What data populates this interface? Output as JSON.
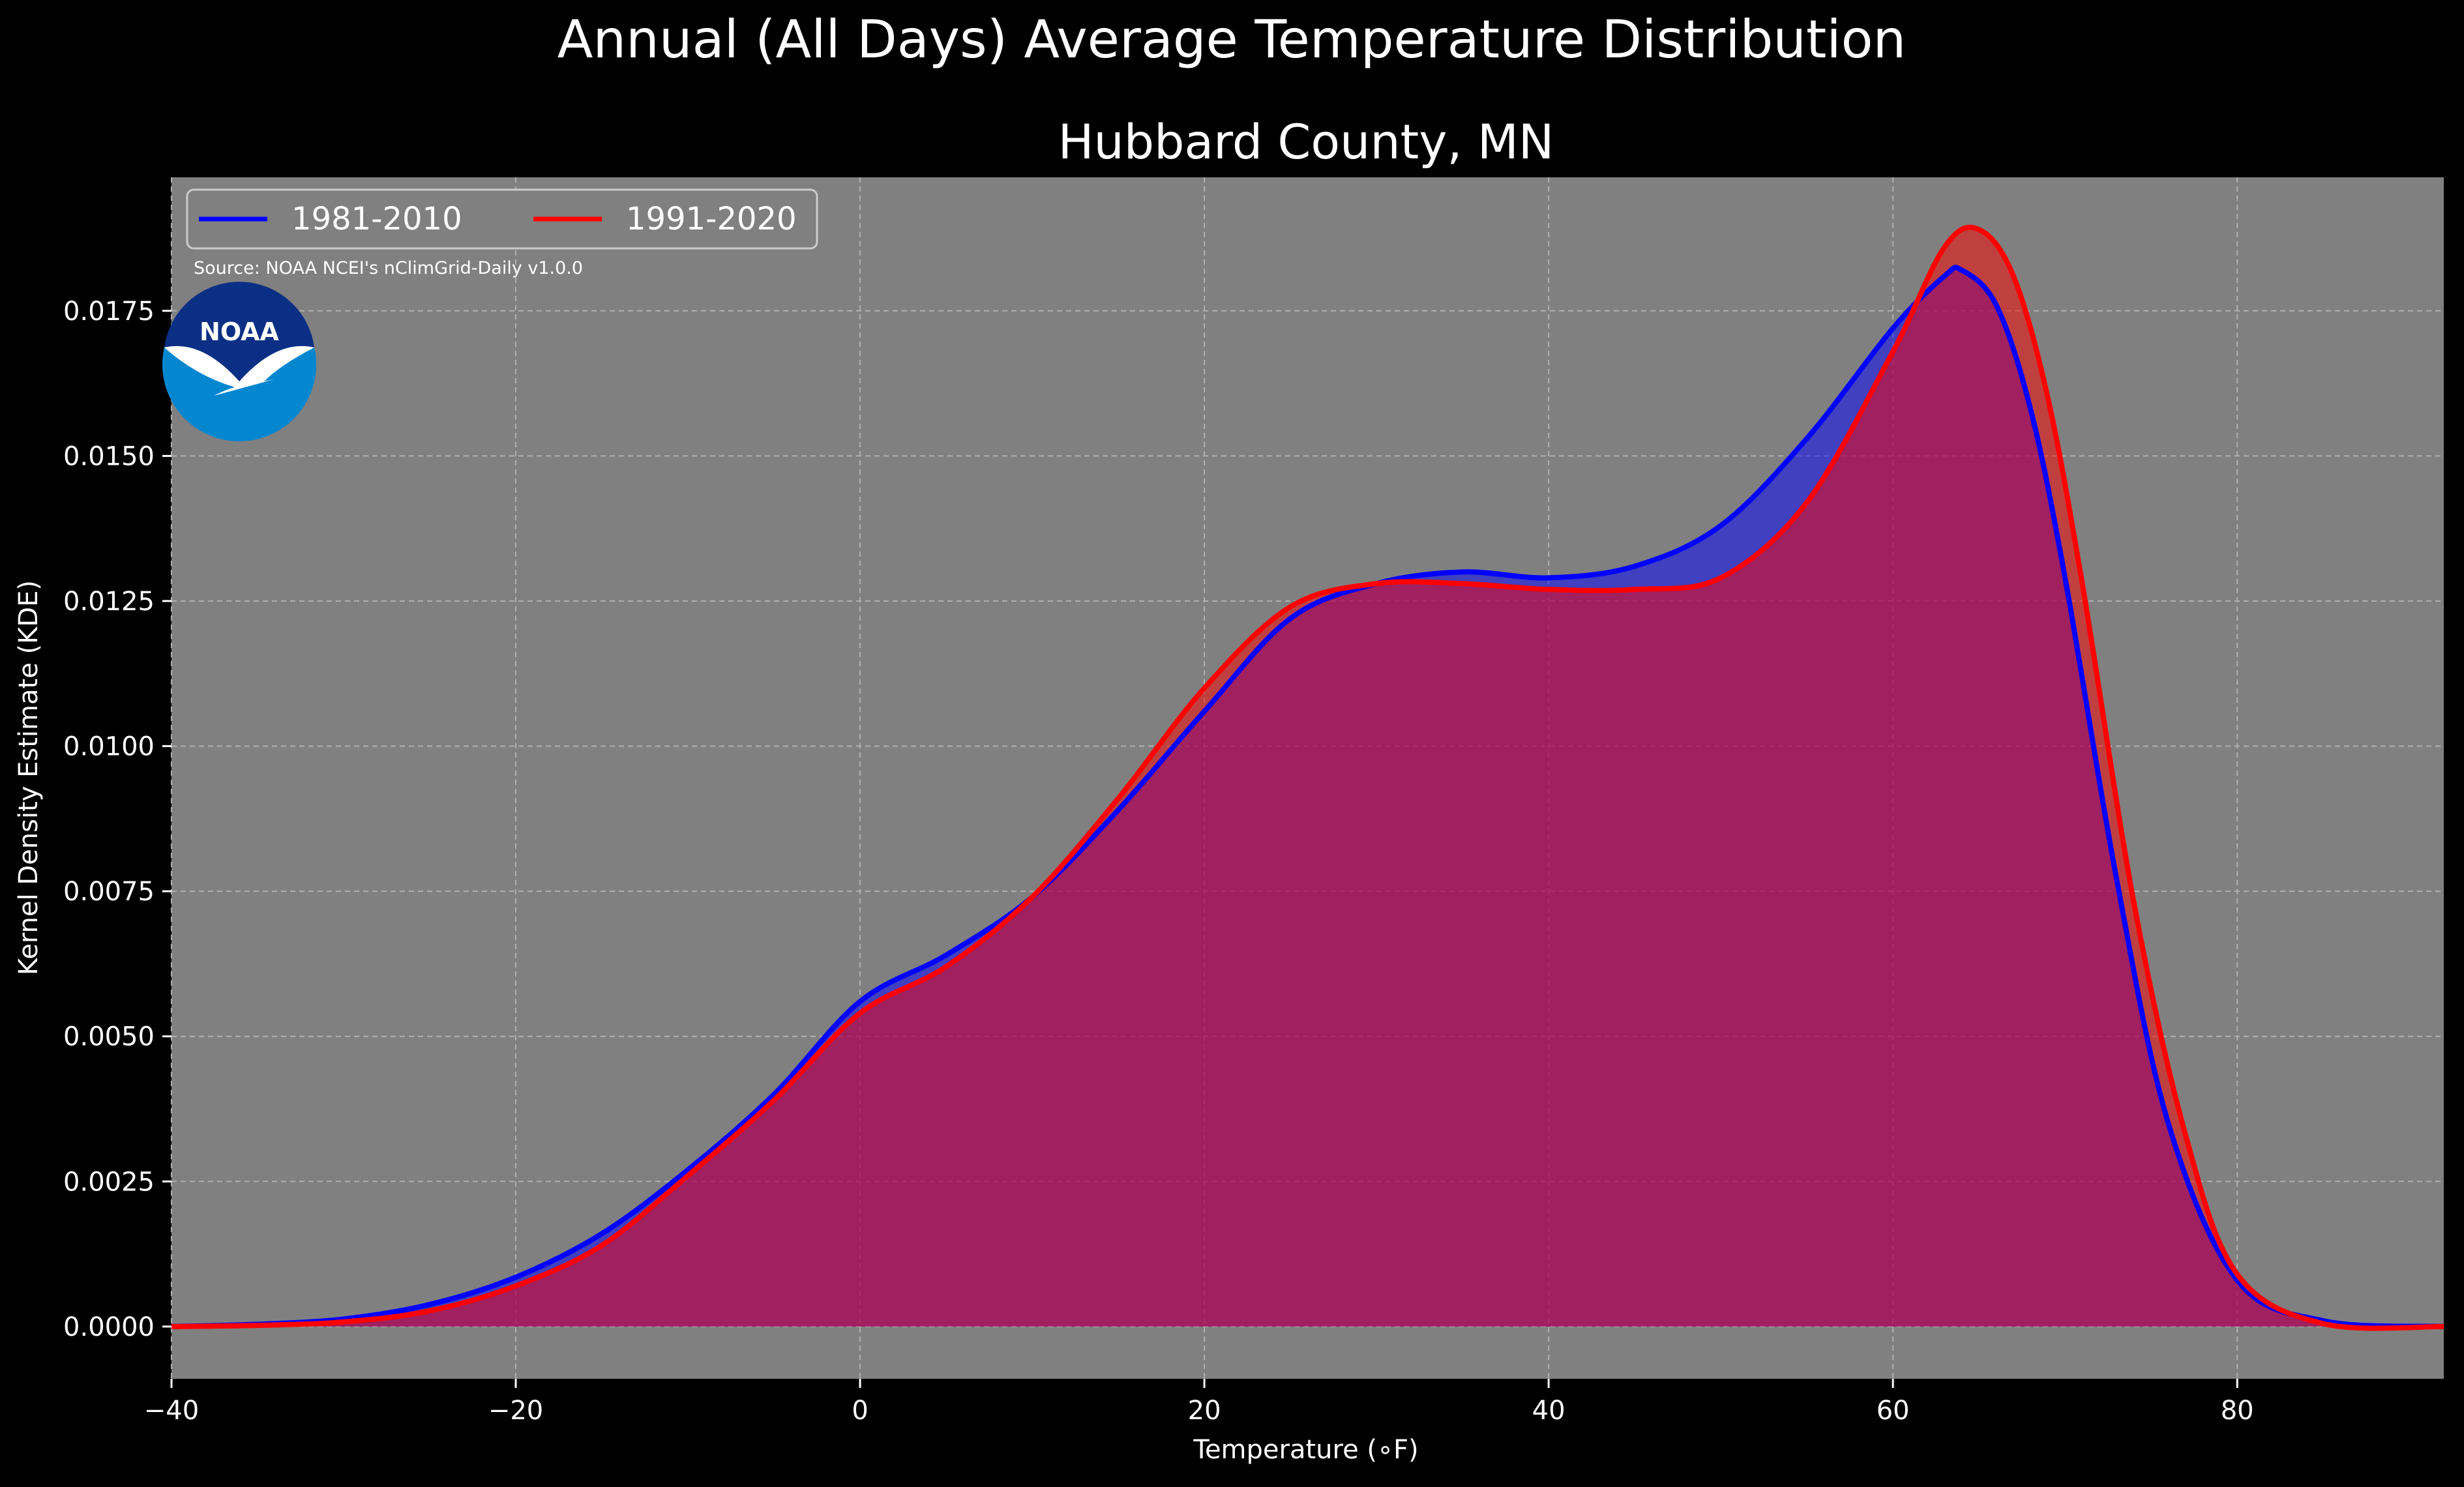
{
  "chart_data": {
    "type": "area",
    "title": "Annual (All Days) Average Temperature Distribution",
    "subtitle": "Hubbard County, MN",
    "xlabel": "Temperature ($^\\circ$F)",
    "xlabel_display": "Temperature (∘F)",
    "ylabel": "Kernel Density Estimate (KDE)",
    "source": "Source: NOAA NCEI's nClimGrid-Daily v1.0.0",
    "logo_text": "NOAA",
    "xlim": [
      -40,
      92
    ],
    "ylim": [
      -0.0009,
      0.0198
    ],
    "xticks": [
      -40,
      -20,
      0,
      20,
      40,
      60,
      80
    ],
    "xtick_labels": [
      "−40",
      "−20",
      "0",
      "20",
      "40",
      "60",
      "80"
    ],
    "yticks": [
      0,
      0.0025,
      0.005,
      0.0075,
      0.01,
      0.0125,
      0.015,
      0.0175
    ],
    "ytick_labels": [
      "0.0000",
      "0.0025",
      "0.0050",
      "0.0075",
      "0.0100",
      "0.0125",
      "0.0150",
      "0.0175"
    ],
    "grid": true,
    "legend_position": "top-left",
    "background_color": "#000000",
    "axes_facecolor": "#808080",
    "series": [
      {
        "name": "1981-2010",
        "color": "#0000ff",
        "x": [
          -40,
          -35,
          -30,
          -25,
          -20,
          -15,
          -10,
          -5,
          0,
          5,
          10,
          15,
          20,
          25,
          30,
          35,
          40,
          45,
          50,
          55,
          60,
          63,
          64,
          66,
          68,
          70,
          73,
          76,
          80,
          85,
          92
        ],
        "y": [
          0.0,
          4e-05,
          0.00013,
          0.00038,
          0.00085,
          0.0016,
          0.0027,
          0.004,
          0.0056,
          0.0064,
          0.0074,
          0.0089,
          0.0106,
          0.0122,
          0.0128,
          0.013,
          0.0129,
          0.0131,
          0.0138,
          0.0153,
          0.0172,
          0.0181,
          0.0182,
          0.0176,
          0.0158,
          0.0129,
          0.0077,
          0.0035,
          0.0008,
          0.0001,
          0.0
        ]
      },
      {
        "name": "1991-2020",
        "color": "#ff0000",
        "x": [
          -40,
          -35,
          -30,
          -25,
          -20,
          -15,
          -10,
          -5,
          0,
          5,
          10,
          15,
          20,
          25,
          30,
          35,
          40,
          45,
          50,
          55,
          60,
          63,
          65,
          67,
          69,
          71,
          74,
          77,
          80,
          85,
          92
        ],
        "y": [
          0.0,
          2e-05,
          8e-05,
          0.00027,
          0.0007,
          0.0014,
          0.0026,
          0.0039,
          0.0054,
          0.0062,
          0.0074,
          0.0091,
          0.011,
          0.0124,
          0.0128,
          0.0128,
          0.0127,
          0.0127,
          0.0129,
          0.0142,
          0.0168,
          0.0186,
          0.0189,
          0.0181,
          0.016,
          0.0128,
          0.0073,
          0.0033,
          0.0009,
          5e-05,
          0.0
        ]
      }
    ]
  }
}
